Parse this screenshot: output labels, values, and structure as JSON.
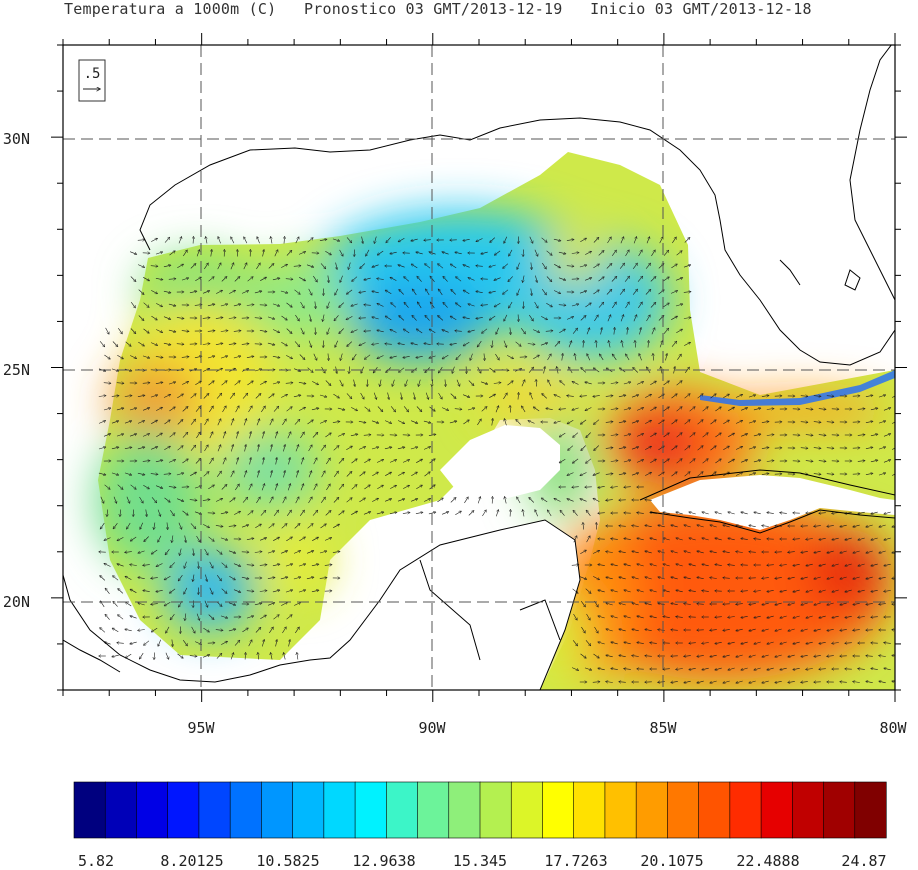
{
  "title": "Temperatura a 1000m (C)   Pronostico 03 GMT/2013-12-19   Inicio 03 GMT/2013-12-18",
  "map": {
    "region": "Gulf of Mexico",
    "lon_range": [
      -98,
      -80
    ],
    "lat_range": [
      18,
      32
    ],
    "x_ticks": [
      {
        "label": "95W"
      },
      {
        "label": "90W"
      },
      {
        "label": "85W"
      },
      {
        "label": "80W"
      }
    ],
    "y_ticks": [
      {
        "label": "30N"
      },
      {
        "label": "25N"
      },
      {
        "label": "20N"
      }
    ],
    "grid": true,
    "vector_reference": ".5"
  },
  "colorbar": {
    "labels": [
      "5.82",
      "8.20125",
      "10.5825",
      "12.9638",
      "15.345",
      "17.7263",
      "20.1075",
      "22.4888",
      "24.87"
    ],
    "colors": [
      "#00007f",
      "#0000b8",
      "#0000e6",
      "#0016ff",
      "#0046ff",
      "#0072ff",
      "#0096ff",
      "#00b8ff",
      "#00d8ff",
      "#00f2ff",
      "#3cf5c8",
      "#6cf39a",
      "#8eef7a",
      "#b4f050",
      "#dcf528",
      "#ffff00",
      "#ffe100",
      "#ffc000",
      "#ff9c00",
      "#ff7800",
      "#ff5400",
      "#ff2c00",
      "#e60000",
      "#c00000",
      "#a00000",
      "#800000"
    ]
  }
}
